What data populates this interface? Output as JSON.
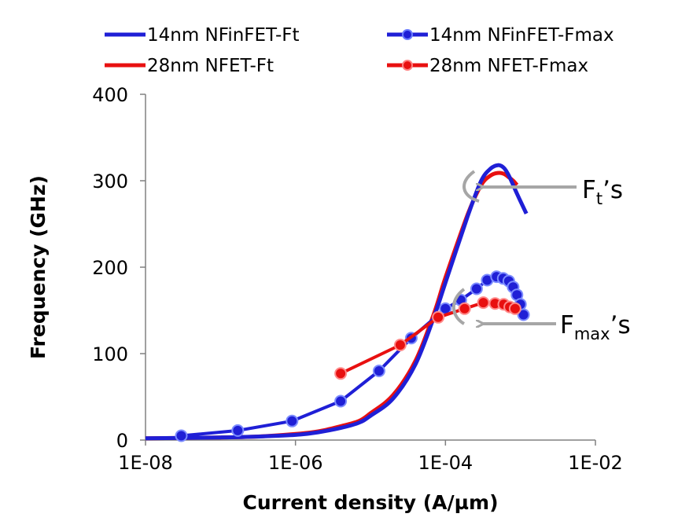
{
  "chart_data": {
    "type": "line",
    "xscale": "log",
    "xlim": [
      1e-08,
      0.01
    ],
    "ylim": [
      0,
      400
    ],
    "grid": false,
    "legend_position": "top",
    "xlabel": "Current density (A/µm)",
    "ylabel": "Frequency (GHz)",
    "x_tick_labels": [
      "1E-08",
      "1E-06",
      "1E-04",
      "1E-02"
    ],
    "y_tick_labels": [
      "0",
      "100",
      "200",
      "300",
      "400"
    ],
    "series": [
      {
        "name": "14nm NFinFET-Ft",
        "color": "#1f1fd6",
        "markers": false,
        "x": [
          1e-08,
          1e-07,
          3e-07,
          1e-06,
          2e-06,
          4e-06,
          7e-06,
          1e-05,
          2e-05,
          4e-05,
          7e-05,
          0.0001,
          0.0002,
          0.0003,
          0.0004,
          0.0005,
          0.0006,
          0.0007,
          0.0009,
          0.0012
        ],
        "y": [
          2,
          3,
          4,
          6,
          9,
          14,
          20,
          28,
          48,
          88,
          142,
          182,
          260,
          300,
          314,
          318,
          315,
          306,
          285,
          262
        ]
      },
      {
        "name": "28nm NFET-Ft",
        "color": "#e81010",
        "markers": false,
        "x": [
          1e-08,
          1e-07,
          3e-07,
          1e-06,
          2e-06,
          4e-06,
          7e-06,
          1e-05,
          2e-05,
          4e-05,
          7e-05,
          0.0001,
          0.0002,
          0.0003,
          0.0004,
          0.0005,
          0.0006,
          0.0007,
          0.0008,
          0.0009
        ],
        "y": [
          2,
          3,
          4,
          7,
          10,
          16,
          22,
          31,
          52,
          92,
          146,
          188,
          262,
          295,
          306,
          309,
          308,
          304,
          300,
          295
        ]
      },
      {
        "name": "14nm NFinFET-Fmax",
        "color": "#1f1fd6",
        "markers": true,
        "x": [
          3e-08,
          1.7e-07,
          9e-07,
          4e-06,
          1.3e-05,
          3.5e-05,
          0.0001,
          0.00016,
          0.00026,
          0.00036,
          0.00048,
          0.00059,
          0.0007,
          0.0008,
          0.0009,
          0.001,
          0.0011
        ],
        "y": [
          5,
          11,
          22,
          45,
          80,
          118,
          152,
          162,
          175,
          185,
          189,
          187,
          184,
          177,
          168,
          157,
          145
        ]
      },
      {
        "name": "28nm NFET-Fmax",
        "color": "#e81010",
        "markers": true,
        "x": [
          4e-06,
          2.5e-05,
          8e-05,
          0.00018,
          0.00032,
          0.00046,
          0.0006,
          0.00072,
          0.00085
        ],
        "y": [
          77,
          110,
          142,
          152,
          159,
          158,
          157,
          154,
          152
        ]
      }
    ],
    "annotations": [
      {
        "base": "F",
        "sub": "t",
        "suffix": "’s"
      },
      {
        "base": "F",
        "sub": "max",
        "suffix": "’s"
      }
    ]
  }
}
